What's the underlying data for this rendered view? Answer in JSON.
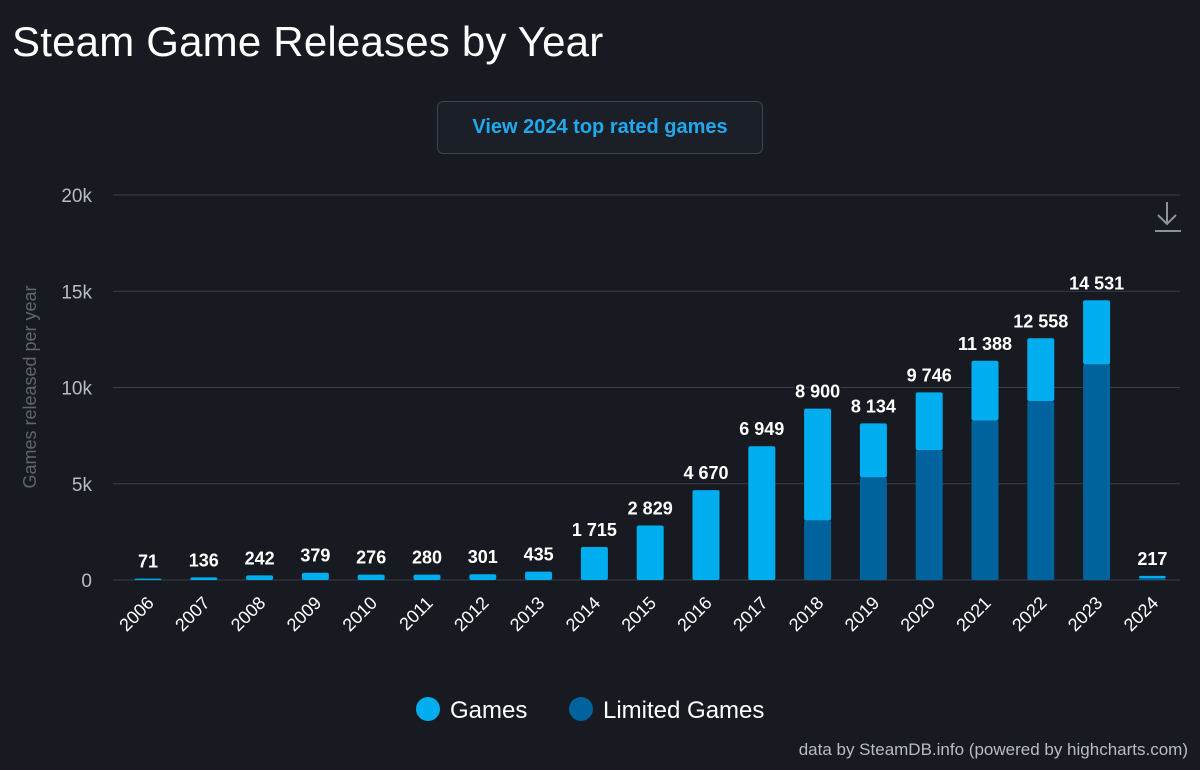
{
  "header": {
    "title": "Steam Game Releases by Year",
    "button_label": "View 2024 top rated games"
  },
  "credits": "data by SteamDB.info (powered by highcharts.com)",
  "colors": {
    "background": "#171a21",
    "games": "#00adee",
    "limited_games": "#00639e",
    "grid": "#3a3f47",
    "axis_text": "#b7bcc6"
  },
  "icons": {
    "export": "download-icon"
  },
  "chart_data": {
    "type": "bar",
    "stacked": true,
    "title": "Steam Game Releases by Year",
    "ylabel": "Games released per year",
    "xlabel": "",
    "ylim": [
      0,
      20000
    ],
    "y_ticks": [
      {
        "value": 0,
        "label": "0"
      },
      {
        "value": 5000,
        "label": "5k"
      },
      {
        "value": 10000,
        "label": "10k"
      },
      {
        "value": 15000,
        "label": "15k"
      },
      {
        "value": 20000,
        "label": "20k"
      }
    ],
    "grid": true,
    "legend_position": "bottom",
    "categories": [
      "2006",
      "2007",
      "2008",
      "2009",
      "2010",
      "2011",
      "2012",
      "2013",
      "2014",
      "2015",
      "2016",
      "2017",
      "2018",
      "2019",
      "2020",
      "2021",
      "2022",
      "2023",
      "2024"
    ],
    "series": [
      {
        "name": "Games",
        "color": "#00adee",
        "values": [
          71,
          136,
          242,
          379,
          276,
          280,
          301,
          435,
          1715,
          2829,
          4670,
          6949,
          5800,
          2800,
          3000,
          3100,
          3260,
          3330,
          110
        ]
      },
      {
        "name": "Limited Games",
        "color": "#00639e",
        "values": [
          0,
          0,
          0,
          0,
          0,
          0,
          0,
          0,
          0,
          0,
          0,
          0,
          3100,
          5334,
          6746,
          8288,
          9298,
          11201,
          107
        ]
      }
    ],
    "totals": [
      71,
      136,
      242,
      379,
      276,
      280,
      301,
      435,
      1715,
      2829,
      4670,
      6949,
      8900,
      8134,
      9746,
      11388,
      12558,
      14531,
      217
    ],
    "total_labels": [
      "71",
      "136",
      "242",
      "379",
      "276",
      "280",
      "301",
      "435",
      "1 715",
      "2 829",
      "4 670",
      "6 949",
      "8 900",
      "8 134",
      "9 746",
      "11 388",
      "12 558",
      "14 531",
      "217"
    ]
  }
}
